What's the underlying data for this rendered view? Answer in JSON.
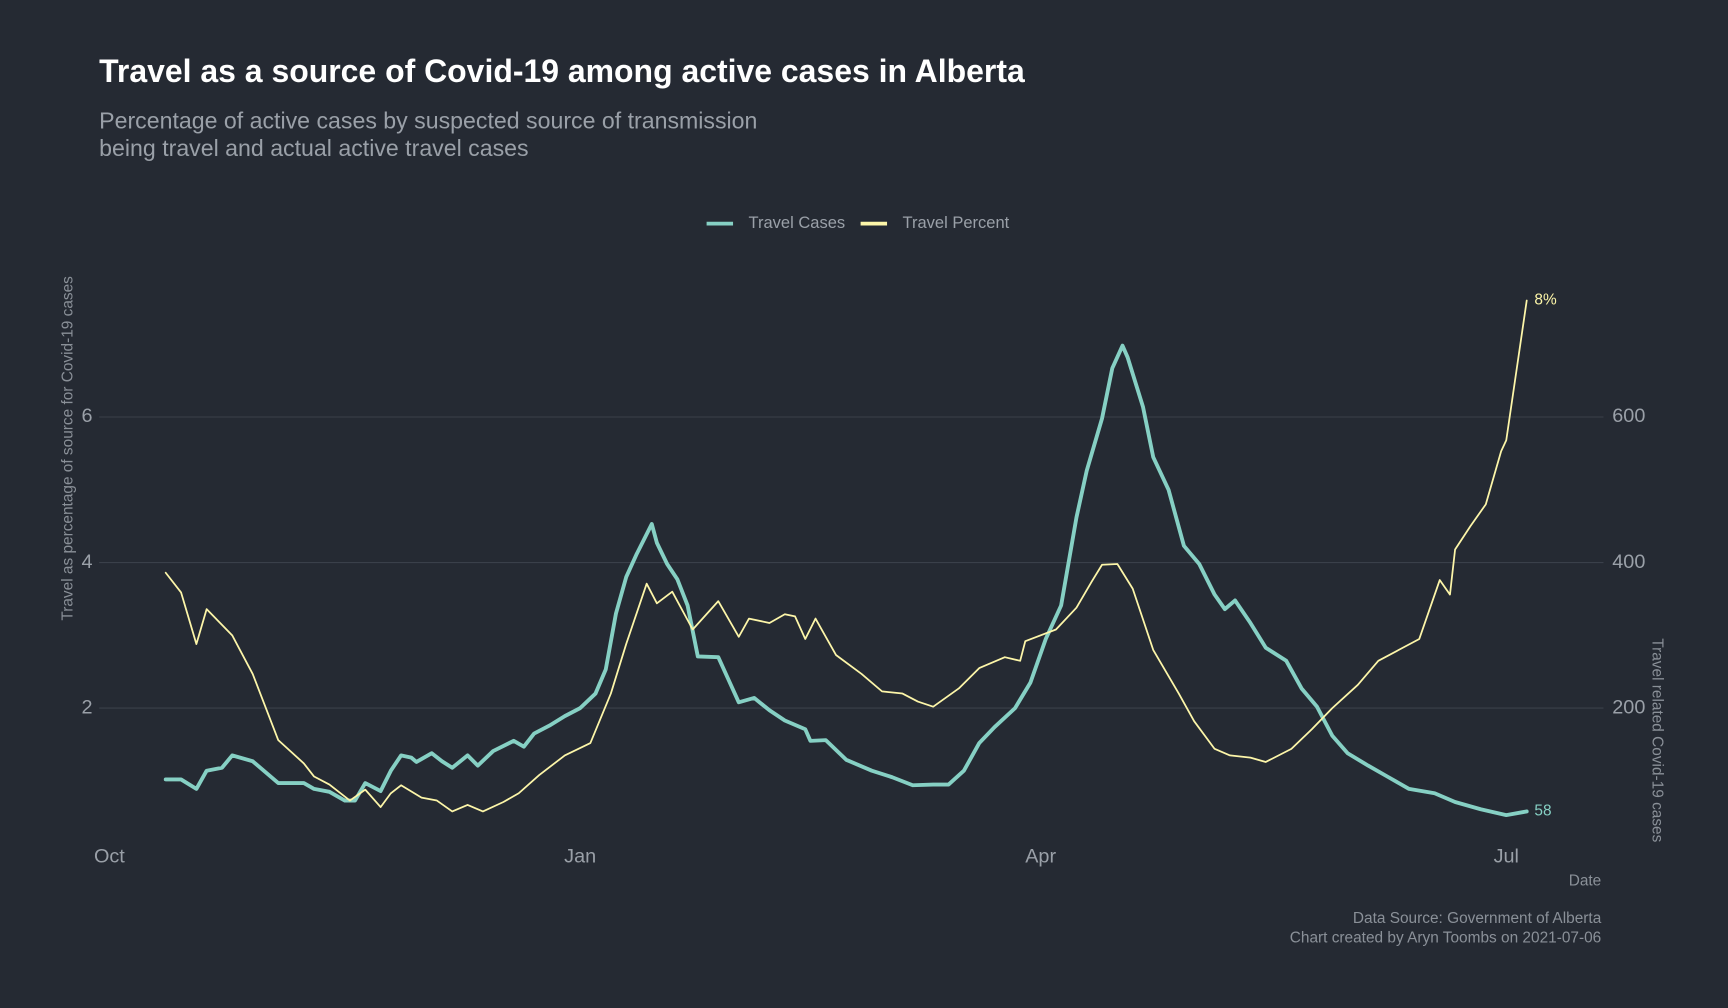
{
  "chart_data": {
    "type": "line",
    "title": "Travel as a source of Covid-19 among active cases in Alberta",
    "subtitle": [
      "Percentage of active cases by suspected source of transmission",
      "being travel and actual active travel cases"
    ],
    "ylabel": "Travel as percentage of source for Covid-19 cases",
    "y2label": "Travel related Covid-19 cases",
    "xlabel": "Date",
    "caption": [
      "Data Source: Government of Alberta",
      "Chart created by Aryn Toombs on 2021-07-06"
    ],
    "legend": "top",
    "grid": true,
    "xlim": [
      -2,
      292
    ],
    "xticks": [
      {
        "value": 0,
        "label": "Oct"
      },
      {
        "value": 92,
        "label": "Jan"
      },
      {
        "value": 182,
        "label": "Apr"
      },
      {
        "value": 273,
        "label": "Jul"
      }
    ],
    "ylim": [
      0.15,
      7.9
    ],
    "yticks": [
      2,
      4,
      6
    ],
    "y2lim": [
      15,
      790
    ],
    "y2ticks": [
      200,
      400,
      600
    ],
    "series": [
      {
        "name": "Travel Cases",
        "color": "#86d0c4",
        "axis": "y2",
        "x": [
          11,
          14,
          17,
          19,
          22,
          24,
          28,
          33,
          38,
          40,
          43,
          46,
          48,
          50,
          53,
          55,
          57,
          59,
          60,
          63,
          65,
          67,
          70,
          72,
          75,
          79,
          81,
          83,
          86,
          89,
          92,
          95,
          97,
          99,
          101,
          103,
          106,
          107,
          109,
          111,
          113,
          115,
          119,
          121,
          123,
          126,
          129,
          132,
          136,
          137,
          140,
          144,
          149,
          153,
          157,
          161,
          164,
          167,
          170,
          173,
          177,
          180,
          183,
          186,
          189,
          191,
          194,
          196,
          198,
          199,
          202,
          204,
          207,
          210,
          213,
          216,
          218,
          220,
          223,
          226,
          230,
          233,
          236,
          239,
          242,
          246,
          250,
          254,
          259,
          263,
          268,
          273,
          277
        ],
        "values": [
          102,
          102,
          89,
          114,
          118,
          135,
          127,
          97,
          97,
          89,
          85,
          73,
          73,
          97,
          86,
          114,
          135,
          132,
          126,
          138,
          127,
          118,
          135,
          121,
          141,
          155,
          147,
          165,
          176,
          189,
          200,
          220,
          253,
          330,
          380,
          411,
          453,
          427,
          398,
          377,
          341,
          271,
          270,
          239,
          208,
          214,
          197,
          183,
          171,
          155,
          156,
          129,
          114,
          105,
          94,
          95,
          95,
          114,
          152,
          174,
          200,
          235,
          295,
          341,
          462,
          526,
          598,
          667,
          698,
          682,
          614,
          545,
          500,
          423,
          398,
          356,
          336,
          348,
          317,
          283,
          265,
          227,
          202,
          162,
          138,
          121,
          105,
          89,
          83,
          71,
          61,
          53,
          58
        ]
      },
      {
        "name": "Travel Percent",
        "color": "#fdf6a9",
        "x": [
          11,
          14,
          17,
          19,
          24,
          28,
          33,
          38,
          40,
          43,
          47,
          50,
          53,
          55,
          57,
          61,
          64,
          67,
          70,
          73,
          77,
          80,
          84,
          89,
          94,
          98,
          101,
          105,
          107,
          110,
          114,
          119,
          123,
          125,
          129,
          132,
          134,
          136,
          138,
          142,
          147,
          151,
          155,
          158,
          161,
          166,
          170,
          175,
          178,
          179,
          185,
          189,
          192,
          194,
          197,
          200,
          204,
          209,
          212,
          216,
          219,
          223,
          226,
          231,
          235,
          239,
          244,
          248,
          252,
          256,
          260,
          262,
          263,
          266,
          269,
          272,
          273,
          277
        ],
        "values": [
          3.86,
          3.59,
          2.88,
          3.36,
          3.0,
          2.47,
          1.56,
          1.24,
          1.06,
          0.95,
          0.73,
          0.88,
          0.64,
          0.83,
          0.94,
          0.77,
          0.73,
          0.58,
          0.67,
          0.58,
          0.71,
          0.83,
          1.08,
          1.35,
          1.52,
          2.2,
          2.88,
          3.71,
          3.44,
          3.6,
          3.08,
          3.47,
          2.98,
          3.23,
          3.17,
          3.29,
          3.26,
          2.95,
          3.23,
          2.73,
          2.47,
          2.23,
          2.2,
          2.09,
          2.02,
          2.27,
          2.55,
          2.7,
          2.65,
          2.92,
          3.08,
          3.38,
          3.74,
          3.97,
          3.98,
          3.64,
          2.8,
          2.2,
          1.82,
          1.44,
          1.35,
          1.32,
          1.26,
          1.44,
          1.71,
          2.0,
          2.32,
          2.65,
          2.8,
          2.95,
          3.76,
          3.56,
          4.18,
          4.5,
          4.8,
          5.53,
          5.68,
          7.6
        ],
        "value_labels": [
          null,
          null,
          null,
          null,
          null,
          null,
          null,
          null,
          null,
          null,
          null,
          null,
          null,
          null,
          null,
          null,
          null,
          null,
          null,
          null,
          null,
          null,
          null,
          null,
          null,
          null,
          null,
          null,
          null,
          null,
          null,
          null,
          null,
          null,
          null,
          null,
          null,
          null,
          null,
          null,
          null,
          null,
          null,
          null,
          null,
          null,
          null,
          null,
          null,
          null,
          null,
          null,
          null,
          null,
          null,
          null,
          null,
          null,
          null,
          null,
          null,
          null,
          null,
          null,
          null,
          null,
          null,
          null,
          null,
          null,
          null,
          null,
          null,
          null,
          null,
          null,
          null,
          "8%"
        ]
      }
    ]
  }
}
